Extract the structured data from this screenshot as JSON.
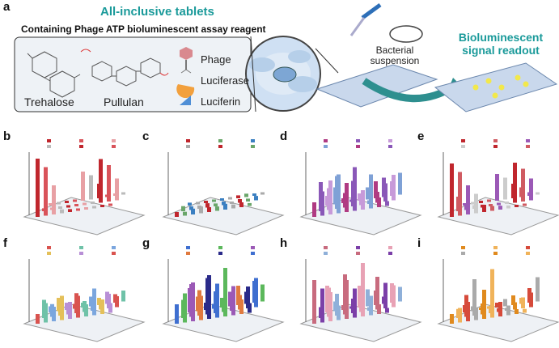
{
  "panel_a": {
    "label": "a",
    "title": "All-inclusive tablets",
    "subtitle": "Containing Phage ATP bioluminescent assay reagent",
    "molecules": [
      "Trehalose",
      "Pullulan"
    ],
    "legend": [
      {
        "icon": "phage-icon",
        "label": "Phage"
      },
      {
        "icon": "luciferase-icon",
        "label": "Luciferase"
      },
      {
        "icon": "luciferin-icon",
        "label": "Luciferin"
      }
    ],
    "bacteria_label": "Bacterial suspension",
    "readout_label": "Bioluminescent signal readout",
    "colors": {
      "teal": "#1a9a9a",
      "well": "#8fb3d9",
      "glow": "#f2e84b"
    }
  },
  "panels": [
    {
      "label": "b"
    },
    {
      "label": "c"
    },
    {
      "label": "d"
    },
    {
      "label": "e"
    },
    {
      "label": "f"
    },
    {
      "label": "g"
    },
    {
      "label": "h"
    },
    {
      "label": "i"
    }
  ]
}
